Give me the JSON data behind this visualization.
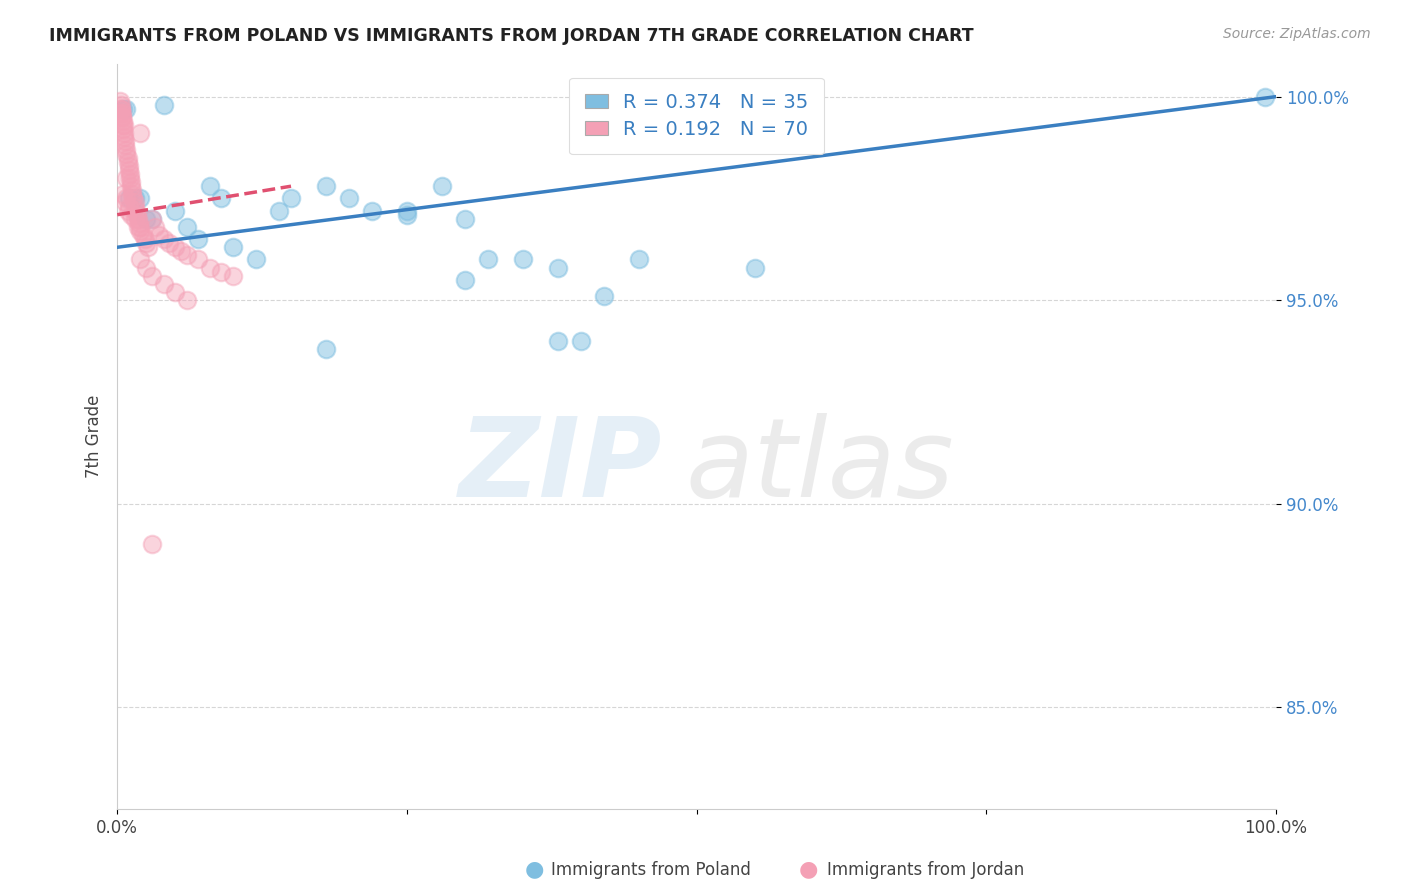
{
  "title": "IMMIGRANTS FROM POLAND VS IMMIGRANTS FROM JORDAN 7TH GRADE CORRELATION CHART",
  "source": "Source: ZipAtlas.com",
  "ylabel": "7th Grade",
  "legend_label_blue": "Immigrants from Poland",
  "legend_label_pink": "Immigrants from Jordan",
  "R_blue": 0.374,
  "N_blue": 35,
  "R_pink": 0.192,
  "N_pink": 70,
  "color_blue": "#7fbee0",
  "color_pink": "#f4a0b5",
  "trendline_blue": "#3a7fc1",
  "trendline_pink": "#e05070",
  "trendline_pink_dashed": true,
  "xlim": [
    0.0,
    1.0
  ],
  "ylim": [
    0.825,
    1.008
  ],
  "ytick_vals": [
    0.85,
    0.9,
    0.95,
    1.0
  ],
  "ytick_labels": [
    "85.0%",
    "90.0%",
    "95.0%",
    "100.0%"
  ],
  "xtick_vals": [
    0.0,
    0.25,
    0.5,
    0.75,
    1.0
  ],
  "xtick_labels": [
    "0.0%",
    "",
    "",
    "",
    "100.0%"
  ],
  "blue_x": [
    0.005,
    0.008,
    0.01,
    0.015,
    0.02,
    0.025,
    0.03,
    0.04,
    0.05,
    0.06,
    0.07,
    0.08,
    0.09,
    0.1,
    0.12,
    0.14,
    0.15,
    0.18,
    0.2,
    0.22,
    0.25,
    0.28,
    0.3,
    0.32,
    0.35,
    0.38,
    0.4,
    0.18,
    0.25,
    0.3,
    0.38,
    0.42,
    0.45,
    0.55,
    0.99
  ],
  "blue_y": [
    0.997,
    0.997,
    0.975,
    0.975,
    0.975,
    0.97,
    0.97,
    0.998,
    0.972,
    0.968,
    0.965,
    0.978,
    0.975,
    0.963,
    0.96,
    0.972,
    0.975,
    0.978,
    0.975,
    0.972,
    0.971,
    0.978,
    0.97,
    0.96,
    0.96,
    0.958,
    0.94,
    0.938,
    0.972,
    0.955,
    0.94,
    0.951,
    0.96,
    0.958,
    1.0
  ],
  "pink_x": [
    0.002,
    0.003,
    0.003,
    0.004,
    0.004,
    0.005,
    0.005,
    0.005,
    0.006,
    0.006,
    0.007,
    0.007,
    0.008,
    0.008,
    0.009,
    0.009,
    0.01,
    0.01,
    0.011,
    0.011,
    0.012,
    0.012,
    0.013,
    0.013,
    0.014,
    0.015,
    0.015,
    0.016,
    0.017,
    0.018,
    0.019,
    0.02,
    0.02,
    0.022,
    0.024,
    0.025,
    0.027,
    0.03,
    0.033,
    0.036,
    0.04,
    0.045,
    0.05,
    0.055,
    0.06,
    0.07,
    0.08,
    0.09,
    0.1,
    0.02,
    0.025,
    0.03,
    0.04,
    0.05,
    0.06,
    0.008,
    0.01,
    0.012,
    0.015,
    0.018,
    0.005,
    0.007,
    0.009,
    0.003,
    0.002,
    0.004,
    0.006,
    0.02,
    0.008,
    0.03
  ],
  "pink_y": [
    0.999,
    0.998,
    0.997,
    0.996,
    0.995,
    0.994,
    0.993,
    0.992,
    0.991,
    0.99,
    0.989,
    0.988,
    0.987,
    0.986,
    0.985,
    0.984,
    0.983,
    0.982,
    0.981,
    0.98,
    0.979,
    0.978,
    0.977,
    0.976,
    0.975,
    0.974,
    0.973,
    0.972,
    0.971,
    0.97,
    0.969,
    0.968,
    0.967,
    0.966,
    0.965,
    0.964,
    0.963,
    0.97,
    0.968,
    0.966,
    0.965,
    0.964,
    0.963,
    0.962,
    0.961,
    0.96,
    0.958,
    0.957,
    0.956,
    0.96,
    0.958,
    0.956,
    0.954,
    0.952,
    0.95,
    0.975,
    0.973,
    0.971,
    0.97,
    0.968,
    0.976,
    0.974,
    0.972,
    0.997,
    0.996,
    0.995,
    0.993,
    0.991,
    0.98,
    0.89
  ]
}
